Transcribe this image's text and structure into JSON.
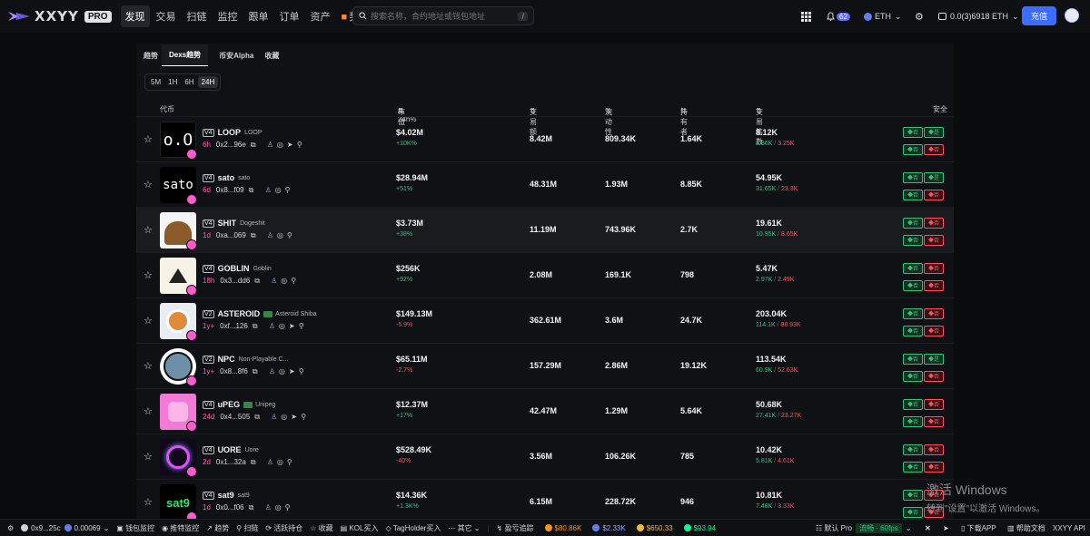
{
  "app": {
    "logo_text": "XXYY",
    "pro_badge": "PRO"
  },
  "nav": [
    {
      "label": "发现"
    },
    {
      "label": "交易"
    },
    {
      "label": "扫链"
    },
    {
      "label": "监控"
    },
    {
      "label": "跟单"
    },
    {
      "label": "订单"
    },
    {
      "label": "资产"
    },
    {
      "label": "奖励"
    }
  ],
  "search": {
    "placeholder": "搜索名称，合约地址或钱包地址",
    "shortcut": "/"
  },
  "header_right": {
    "notification_count": "62",
    "chain": "ETH",
    "wallet_balance": "0.0(3)6918 ETH",
    "deposit_label": "充值"
  },
  "tabs": [
    {
      "label": "趋势"
    },
    {
      "label": "Dexs趋势"
    },
    {
      "label": "币安Alpha"
    },
    {
      "label": "收藏"
    }
  ],
  "timeframes": [
    {
      "label": "5M"
    },
    {
      "label": "1H"
    },
    {
      "label": "6H"
    },
    {
      "label": "24H"
    }
  ],
  "columns": {
    "token": "代币",
    "market_cap": "市值",
    "change_24h": "/ 24h%",
    "volume": "交易额",
    "liquidity": "流动性",
    "holders": "持有者",
    "txs": "交易笔数",
    "security": "安全"
  },
  "tokens": [
    {
      "version": "V4",
      "symbol": "LOOP",
      "name": "LOOP",
      "age": "6h",
      "address": "0x2...96e",
      "market_cap": "$4.02M",
      "change": "+10K%",
      "volume": "8.42M",
      "liquidity": "809.34K",
      "holders": "1.64K",
      "txs": "8.12K",
      "buys": "4.86K",
      "sells": "3.25K",
      "thumb_text": "o.O"
    },
    {
      "version": "V4",
      "symbol": "sato",
      "name": "sato",
      "age": "6d",
      "address": "0x8...f09",
      "market_cap": "$28.94M",
      "change": "+51%",
      "volume": "48.31M",
      "liquidity": "1.93M",
      "holders": "8.85K",
      "txs": "54.95K",
      "buys": "31.65K",
      "sells": "23.3K",
      "thumb_text": "sato"
    },
    {
      "version": "V4",
      "symbol": "SHIT",
      "name": "Dogeshit",
      "age": "1d",
      "address": "0xa...069",
      "market_cap": "$3.73M",
      "change": "+38%",
      "volume": "11.19M",
      "liquidity": "743.96K",
      "holders": "2.7K",
      "txs": "19.61K",
      "buys": "10.95K",
      "sells": "8.65K",
      "thumb_text": ""
    },
    {
      "version": "V4",
      "symbol": "GOBLIN",
      "name": "Goblin",
      "age": "18h",
      "address": "0x3...dd6",
      "market_cap": "$256K",
      "change": "+92%",
      "volume": "2.08M",
      "liquidity": "169.1K",
      "holders": "798",
      "txs": "5.47K",
      "buys": "2.97K",
      "sells": "2.49K",
      "thumb_text": ""
    },
    {
      "version": "V2",
      "symbol": "ASTEROID",
      "name": "Asteroid Shiba",
      "age": "1y+",
      "address": "0xf...126",
      "market_cap": "$149.13M",
      "change": "-5.9%",
      "volume": "362.61M",
      "liquidity": "3.6M",
      "holders": "24.7K",
      "txs": "203.04K",
      "buys": "114.1K",
      "sells": "88.93K",
      "thumb_text": ""
    },
    {
      "version": "V2",
      "symbol": "NPC",
      "name": "Non-Playable C...",
      "age": "1y+",
      "address": "0x8...8f6",
      "market_cap": "$65.11M",
      "change": "-2.7%",
      "volume": "157.29M",
      "liquidity": "2.86M",
      "holders": "19.12K",
      "txs": "113.54K",
      "buys": "60.9K",
      "sells": "52.63K",
      "thumb_text": ""
    },
    {
      "version": "V4",
      "symbol": "uPEG",
      "name": "Unipeg",
      "age": "24d",
      "address": "0x4...505",
      "market_cap": "$12.37M",
      "change": "+17%",
      "volume": "42.47M",
      "liquidity": "1.29M",
      "holders": "5.64K",
      "txs": "50.68K",
      "buys": "27.41K",
      "sells": "23.27K",
      "thumb_text": ""
    },
    {
      "version": "V4",
      "symbol": "UORE",
      "name": "Uore",
      "age": "2d",
      "address": "0x1...32a",
      "market_cap": "$528.49K",
      "change": "-40%",
      "volume": "3.56M",
      "liquidity": "106.26K",
      "holders": "785",
      "txs": "10.42K",
      "buys": "5.81K",
      "sells": "4.61K",
      "thumb_text": ""
    },
    {
      "version": "V4",
      "symbol": "sat9",
      "name": "sat9",
      "age": "1d",
      "address": "0x0...f06",
      "market_cap": "$14.36K",
      "change": "+1.3K%",
      "volume": "6.15M",
      "liquidity": "228.72K",
      "holders": "946",
      "txs": "10.81K",
      "buys": "7.48K",
      "sells": "3.33K",
      "thumb_text": "sat9"
    }
  ],
  "security_badges": {
    "yes": "否",
    "no": "是"
  },
  "bottombar": {
    "wallet": "0x9...25c",
    "eth_balance": "0.00069",
    "items": [
      {
        "label": "钱包监控"
      },
      {
        "label": "推特监控"
      },
      {
        "label": "趋势"
      },
      {
        "label": "扫链"
      },
      {
        "label": "活跃持仓"
      },
      {
        "label": "收藏"
      },
      {
        "label": "KOL买入"
      },
      {
        "label": "TagHolder买入"
      },
      {
        "label": "其它"
      },
      {
        "label": "盈亏追踪"
      }
    ],
    "prices": [
      {
        "label": "$80.86K",
        "color": "#f7931a"
      },
      {
        "label": "$2.33K",
        "color": "#627eea"
      },
      {
        "label": "$650.33",
        "color": "#f3ba2f"
      },
      {
        "label": "$93.94",
        "color": "#14f195"
      }
    ],
    "default_mode": "默认 Pro",
    "speed": "流畅 · 60fps",
    "download": "下载APP",
    "help": "帮助文档",
    "api": "XXYY API"
  },
  "watermark": {
    "line1": "激活 Windows",
    "line2": "转到\"设置\"以激活 Windows。"
  },
  "colors": {
    "accent": "#3d6dff",
    "positive": "#2ec27e",
    "negative": "#ff4f5e",
    "age": "#ff5ab2"
  }
}
